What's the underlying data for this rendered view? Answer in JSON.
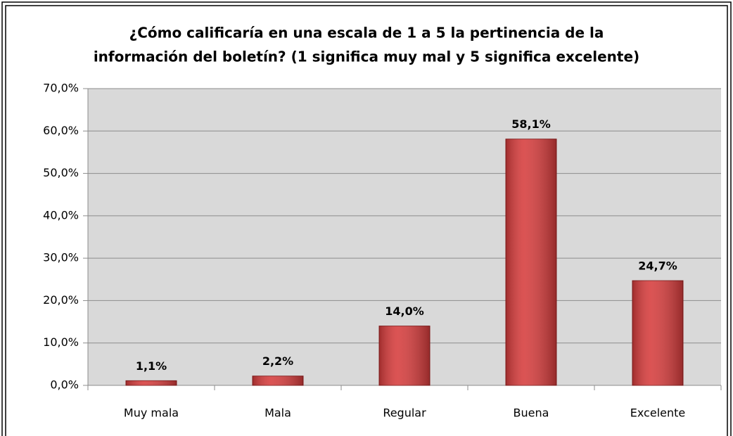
{
  "chart_data": {
    "type": "bar",
    "title": [
      "¿Cómo calificaría en una escala de 1 a 5 la pertinencia de la",
      "información del boletín? (1 significa muy mal y 5 significa excelente)"
    ],
    "categories": [
      "Muy mala",
      "Mala",
      "Regular",
      "Buena",
      "Excelente"
    ],
    "values": [
      1.1,
      2.2,
      14.0,
      58.1,
      24.7
    ],
    "value_labels": [
      "1,1%",
      "2,2%",
      "14,0%",
      "58,1%",
      "24,7%"
    ],
    "color": "#d63c3c",
    "ylim": [
      0,
      70
    ],
    "yticks": [
      {
        "value": 0,
        "label": "0,0%"
      },
      {
        "value": 10,
        "label": "10,0%"
      },
      {
        "value": 20,
        "label": "20,0%"
      },
      {
        "value": 30,
        "label": "30,0%"
      },
      {
        "value": 40,
        "label": "40,0%"
      },
      {
        "value": 50,
        "label": "50,0%"
      },
      {
        "value": 60,
        "label": "60,0%"
      },
      {
        "value": 70,
        "label": "70,0%"
      }
    ],
    "grid": true
  }
}
